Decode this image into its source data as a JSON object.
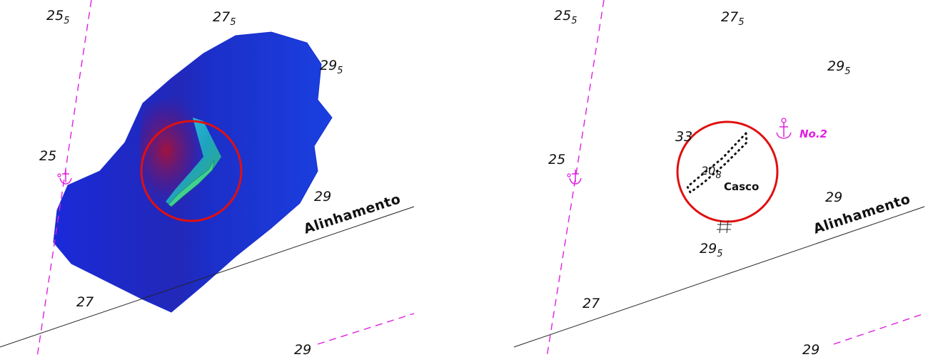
{
  "colors": {
    "pink_dashed": "#e020e0",
    "highlight_circle": "#e01010",
    "line": "#222222",
    "bathymetry_deep": "#1428c8",
    "bathymetry_shallow": "#20d0b0"
  },
  "left_panel": {
    "soundings": [
      {
        "value": "25",
        "sub": "5"
      },
      {
        "value": "27",
        "sub": "5"
      },
      {
        "value": "29",
        "sub": "5"
      },
      {
        "value": "25",
        "sub": ""
      },
      {
        "value": "29",
        "sub": ""
      },
      {
        "value": "27",
        "sub": ""
      },
      {
        "value": "29",
        "sub": ""
      }
    ],
    "line_label": "Alinhamento",
    "icons": [
      "anchor-icon"
    ]
  },
  "right_panel": {
    "soundings": [
      {
        "value": "25",
        "sub": "5"
      },
      {
        "value": "27",
        "sub": "5"
      },
      {
        "value": "29",
        "sub": "5"
      },
      {
        "value": "33",
        "sub": ""
      },
      {
        "value": "20",
        "sub": "8"
      },
      {
        "value": "25",
        "sub": ""
      },
      {
        "value": "29",
        "sub": ""
      },
      {
        "value": "29",
        "sub": "5"
      },
      {
        "value": "27",
        "sub": ""
      },
      {
        "value": "29",
        "sub": ""
      }
    ],
    "wreck_label": "Casco",
    "anchor_label": "No.2",
    "line_label": "Alinhamento",
    "icons": [
      "anchor-icon",
      "anchor-icon",
      "obstruction-hash-icon"
    ]
  }
}
